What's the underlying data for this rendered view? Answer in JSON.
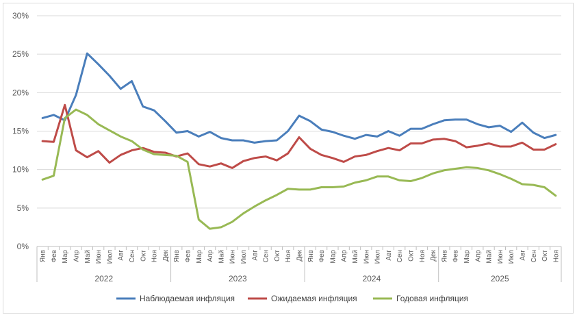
{
  "chart_data": {
    "type": "line",
    "title": "",
    "xlabel": "",
    "ylabel": "",
    "ylim": [
      0,
      30
    ],
    "yticks": [
      0,
      5,
      10,
      15,
      20,
      25,
      30
    ],
    "ytick_labels": [
      "0%",
      "5%",
      "10%",
      "15%",
      "20%",
      "25%",
      "30%"
    ],
    "grid": true,
    "legend_position": "bottom",
    "years": [
      {
        "label": "2022",
        "months": 12
      },
      {
        "label": "2023",
        "months": 12
      },
      {
        "label": "2024",
        "months": 12
      },
      {
        "label": "2025",
        "months": 11
      }
    ],
    "categories": [
      "Янв",
      "Фев",
      "Мар",
      "Апр",
      "Май",
      "Июн",
      "Июл",
      "Авг",
      "Сен",
      "Окт",
      "Ноя",
      "Дек",
      "Янв",
      "Фев",
      "Мар",
      "Апр",
      "Май",
      "Июн",
      "Июл",
      "Авг",
      "Сен",
      "Окт",
      "Ноя",
      "Дек",
      "Янв",
      "Фев",
      "Мар",
      "Апр",
      "Май",
      "Июн",
      "Июл",
      "Авг",
      "Сен",
      "Окт",
      "Ноя",
      "Дек",
      "Янв",
      "Фев",
      "Мар",
      "Апр",
      "Май",
      "Июн",
      "Июл",
      "Авг",
      "Сен",
      "Окт",
      "Ноя"
    ],
    "series": [
      {
        "name": "Наблюдаемая инфляция",
        "color": "#4a7ebb",
        "values": [
          16.7,
          17.1,
          16.4,
          19.7,
          25.1,
          23.7,
          22.2,
          20.5,
          21.5,
          18.2,
          17.7,
          16.3,
          14.8,
          15.0,
          14.3,
          14.9,
          14.1,
          13.8,
          13.8,
          13.5,
          13.7,
          13.8,
          15.0,
          17.0,
          16.3,
          15.2,
          14.9,
          14.4,
          14.0,
          14.5,
          14.3,
          15.0,
          14.4,
          15.3,
          15.3,
          15.9,
          16.4,
          16.5,
          16.5,
          15.9,
          15.5,
          15.7,
          14.9,
          16.1,
          14.8,
          14.1,
          14.5
        ]
      },
      {
        "name": "Ожидаемая инфляция",
        "color": "#be4b48",
        "values": [
          13.7,
          13.6,
          18.4,
          12.5,
          11.6,
          12.4,
          10.9,
          11.9,
          12.5,
          12.8,
          12.3,
          12.2,
          11.7,
          12.1,
          10.7,
          10.4,
          10.8,
          10.2,
          11.1,
          11.5,
          11.7,
          11.2,
          12.1,
          14.2,
          12.7,
          11.9,
          11.5,
          11.0,
          11.7,
          11.9,
          12.4,
          12.8,
          12.5,
          13.4,
          13.4,
          13.9,
          14.0,
          13.7,
          12.9,
          13.1,
          13.4,
          13.0,
          13.0,
          13.5,
          12.6,
          12.6,
          13.3
        ]
      },
      {
        "name": "Годовая инфляция",
        "color": "#98b954",
        "values": [
          8.7,
          9.2,
          16.7,
          17.8,
          17.1,
          15.9,
          15.1,
          14.3,
          13.7,
          12.6,
          12.0,
          11.9,
          11.8,
          11.0,
          3.5,
          2.3,
          2.5,
          3.2,
          4.3,
          5.2,
          6.0,
          6.7,
          7.5,
          7.4,
          7.4,
          7.7,
          7.7,
          7.8,
          8.3,
          8.6,
          9.1,
          9.1,
          8.6,
          8.5,
          8.9,
          9.5,
          9.9,
          10.1,
          10.3,
          10.2,
          9.9,
          9.4,
          8.8,
          8.1,
          8.0,
          7.7,
          6.6
        ]
      }
    ]
  }
}
